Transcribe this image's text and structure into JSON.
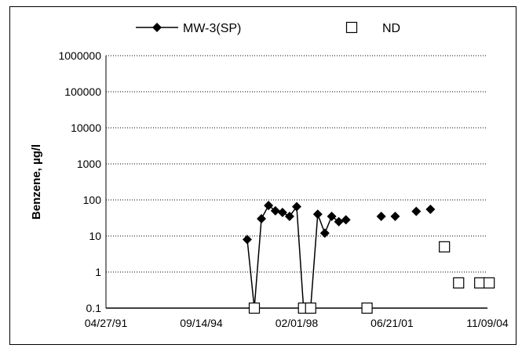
{
  "chart_data": {
    "type": "scatter",
    "title": "",
    "xlabel": "",
    "ylabel": "Benzene, µg/l",
    "y_scale": "log",
    "ylim": [
      0.1,
      1000000
    ],
    "xlim": [
      "04/27/91",
      "11/09/04"
    ],
    "x_tick_labels": [
      "04/27/91",
      "09/14/94",
      "02/01/98",
      "06/21/01",
      "11/09/04"
    ],
    "y_tick_labels": [
      "1000000",
      "100000",
      "10000",
      "1000",
      "100",
      "10",
      "1",
      "0.1"
    ],
    "grid": "horizontal",
    "legend_position": "top",
    "series": [
      {
        "name": "MW-3(SP)",
        "style": "line-diamond",
        "color": "#000000",
        "points": [
          {
            "x": "1996-05-01",
            "y": 8
          },
          {
            "x": "1996-08-01",
            "y": 0.1
          },
          {
            "x": "1996-11-01",
            "y": 30
          },
          {
            "x": "1997-02-01",
            "y": 70
          },
          {
            "x": "1997-05-01",
            "y": 50
          },
          {
            "x": "1997-08-01",
            "y": 45
          },
          {
            "x": "1997-11-01",
            "y": 35
          },
          {
            "x": "1998-02-01",
            "y": 65
          },
          {
            "x": "1998-05-01",
            "y": 0.1
          },
          {
            "x": "1998-08-01",
            "y": 0.1
          },
          {
            "x": "1998-11-01",
            "y": 40
          },
          {
            "x": "1999-02-01",
            "y": 12
          },
          {
            "x": "1999-05-01",
            "y": 35
          },
          {
            "x": "1999-08-01",
            "y": 25
          },
          {
            "x": "1999-11-01",
            "y": 28
          }
        ],
        "connected_through": "1999-11-01"
      },
      {
        "name": "MW-3(SP)",
        "style": "diamond-only",
        "color": "#000000",
        "points": [
          {
            "x": "2001-02-01",
            "y": 35
          },
          {
            "x": "2001-08-01",
            "y": 35
          },
          {
            "x": "2002-05-01",
            "y": 48
          },
          {
            "x": "2002-11-01",
            "y": 55
          }
        ]
      },
      {
        "name": "ND",
        "style": "open-square",
        "color": "#000000",
        "points": [
          {
            "x": "1996-08-01",
            "y": 0.1
          },
          {
            "x": "1998-05-01",
            "y": 0.1
          },
          {
            "x": "1998-08-01",
            "y": 0.1
          },
          {
            "x": "2000-08-01",
            "y": 0.1
          },
          {
            "x": "2003-05-01",
            "y": 5
          },
          {
            "x": "2003-11-01",
            "y": 0.5
          },
          {
            "x": "2004-08-01",
            "y": 0.5
          },
          {
            "x": "2004-12-01",
            "y": 0.5
          }
        ]
      }
    ]
  },
  "legend": {
    "items": [
      {
        "label": "MW-3(SP)",
        "marker": "line-diamond"
      },
      {
        "label": "ND",
        "marker": "open-square"
      }
    ]
  }
}
